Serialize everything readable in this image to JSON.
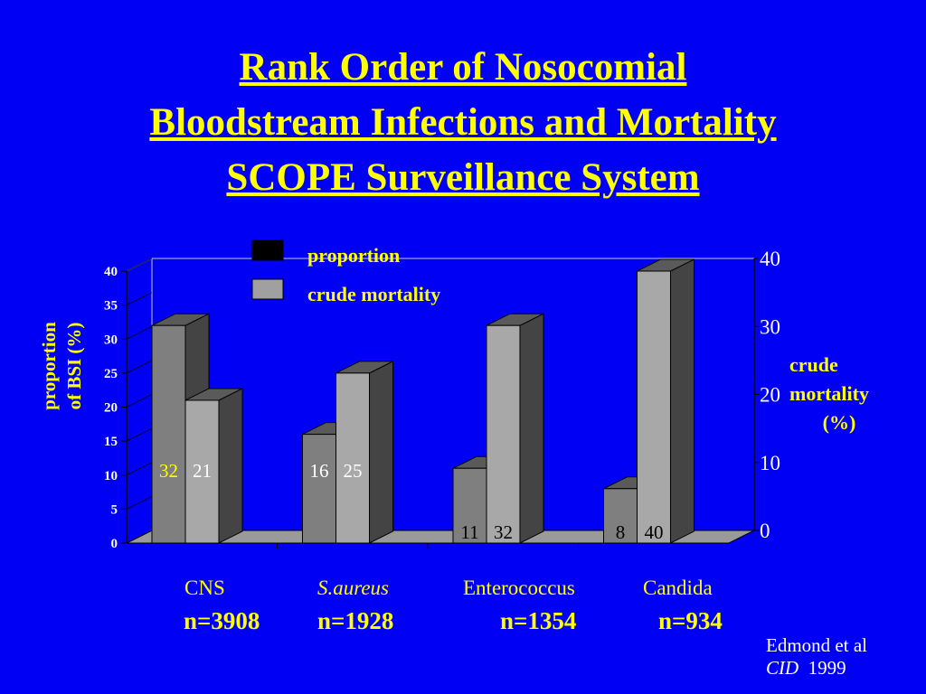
{
  "title": {
    "line1": "Rank Order of Nosocomial",
    "line2": "Bloodstream Infections and Mortality",
    "line3": "SCOPE Surveillance System"
  },
  "colors": {
    "background": "#0000f5",
    "title": "#ffff00",
    "proportion_bar": "#7f7f7f",
    "mortality_bar": "#a8a8a8",
    "legend_proportion": "#000000",
    "legend_mortality": "#a0a0a0"
  },
  "legend": {
    "proportion": "proportion",
    "mortality": "crude mortality"
  },
  "left_axis_label": {
    "line1": "proportion",
    "line2": "of  BSI (%)"
  },
  "right_axis_label": {
    "line1": "crude",
    "line2": "mortality",
    "line3": "(%)"
  },
  "chart_data": {
    "type": "bar",
    "categories": [
      "CNS",
      "S.aureus",
      "Enterococcus",
      "Candida"
    ],
    "category_counts": [
      "n=3908",
      "n=1928",
      "n=1354",
      "n=934"
    ],
    "series": [
      {
        "name": "proportion",
        "values": [
          32,
          16,
          11,
          8
        ]
      },
      {
        "name": "crude mortality",
        "values": [
          21,
          25,
          32,
          40
        ]
      }
    ],
    "data_labels": {
      "proportion": [
        "32",
        "16",
        "11",
        "8"
      ],
      "mortality": [
        "21",
        "25",
        "32",
        "40"
      ]
    },
    "left_axis": {
      "ylim": [
        0,
        40
      ],
      "ticks": [
        0,
        5,
        10,
        15,
        20,
        25,
        30,
        35,
        40
      ]
    },
    "right_axis": {
      "ylim": [
        0,
        40
      ],
      "ticks": [
        0,
        10,
        20,
        30,
        40
      ]
    }
  },
  "source": {
    "line1": "Edmond et al",
    "journal": "CID",
    "year": "1999"
  }
}
